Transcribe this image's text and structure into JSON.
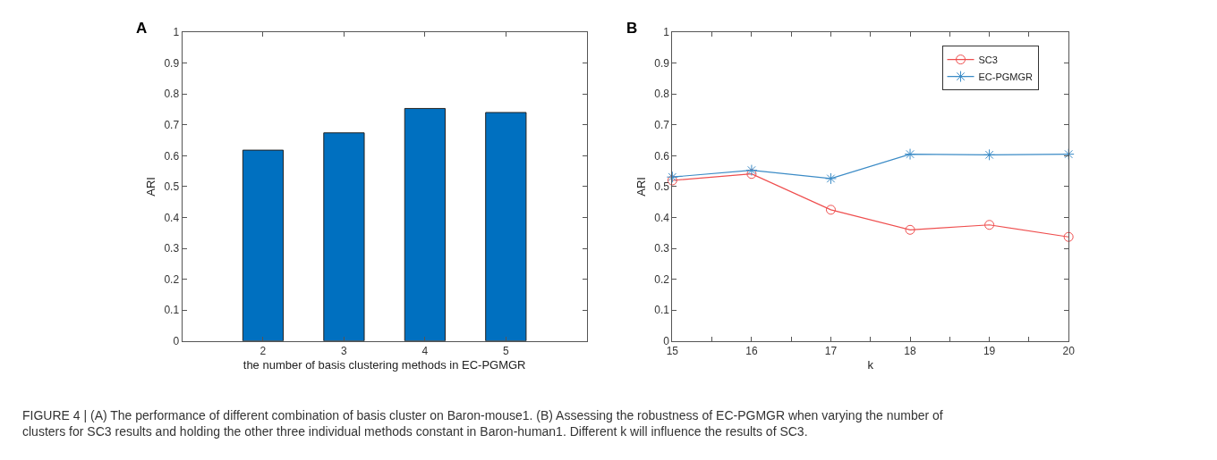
{
  "chart_data": [
    {
      "type": "bar",
      "title": "A",
      "xlabel": "the number of basis clustering methods in EC-PGMGR",
      "ylabel": "ARI",
      "x": [
        2,
        3,
        4,
        5
      ],
      "values": [
        0.618,
        0.674,
        0.753,
        0.74
      ],
      "color": "#0070c0",
      "xlim": [
        1,
        6
      ],
      "xticks": [
        2,
        3,
        4,
        5
      ],
      "ylim": [
        0,
        1
      ],
      "yticks": [
        0,
        0.1,
        0.2,
        0.3,
        0.4,
        0.5,
        0.6,
        0.7,
        0.8,
        0.9,
        1
      ],
      "grid": false,
      "legend": false
    },
    {
      "type": "line",
      "title": "B",
      "xlabel": "k",
      "ylabel": "ARI",
      "x": [
        15,
        16,
        17,
        18,
        19,
        20
      ],
      "series": [
        {
          "name": "SC3",
          "color": "#ef4e4e",
          "marker": "circle",
          "values": [
            0.52,
            0.541,
            0.425,
            0.36,
            0.376,
            0.337
          ]
        },
        {
          "name": "EC-PGMGR",
          "color": "#3b8bc6",
          "marker": "cross",
          "values": [
            0.531,
            0.553,
            0.526,
            0.605,
            0.603,
            0.605
          ]
        }
      ],
      "xlim": [
        15,
        20
      ],
      "xticks": [
        15,
        {
          "value": 15.5,
          "label": null
        },
        16,
        {
          "value": 16.5,
          "label": null
        },
        17,
        {
          "value": 17.5,
          "label": null
        },
        18,
        {
          "value": 18.5,
          "label": null
        },
        19,
        {
          "value": 19.5,
          "label": null
        },
        20
      ],
      "ylim": [
        0,
        1
      ],
      "yticks": [
        0,
        0.1,
        0.2,
        0.3,
        0.4,
        0.5,
        0.6,
        0.7,
        0.8,
        0.9,
        1
      ],
      "grid": false,
      "legend": "top right",
      "line_style": "solid",
      "annotations": [
        "FIGURE 4 | (A) The performance of different combination of basis cluster on Baron-mouse1. (B) Assessing the robustness of EC-PGMGR when varying the number of clusters for SC3 results and holding the other three individual methods constant in Baron-human1. Different k will influence the results of SC3."
      ]
    }
  ]
}
